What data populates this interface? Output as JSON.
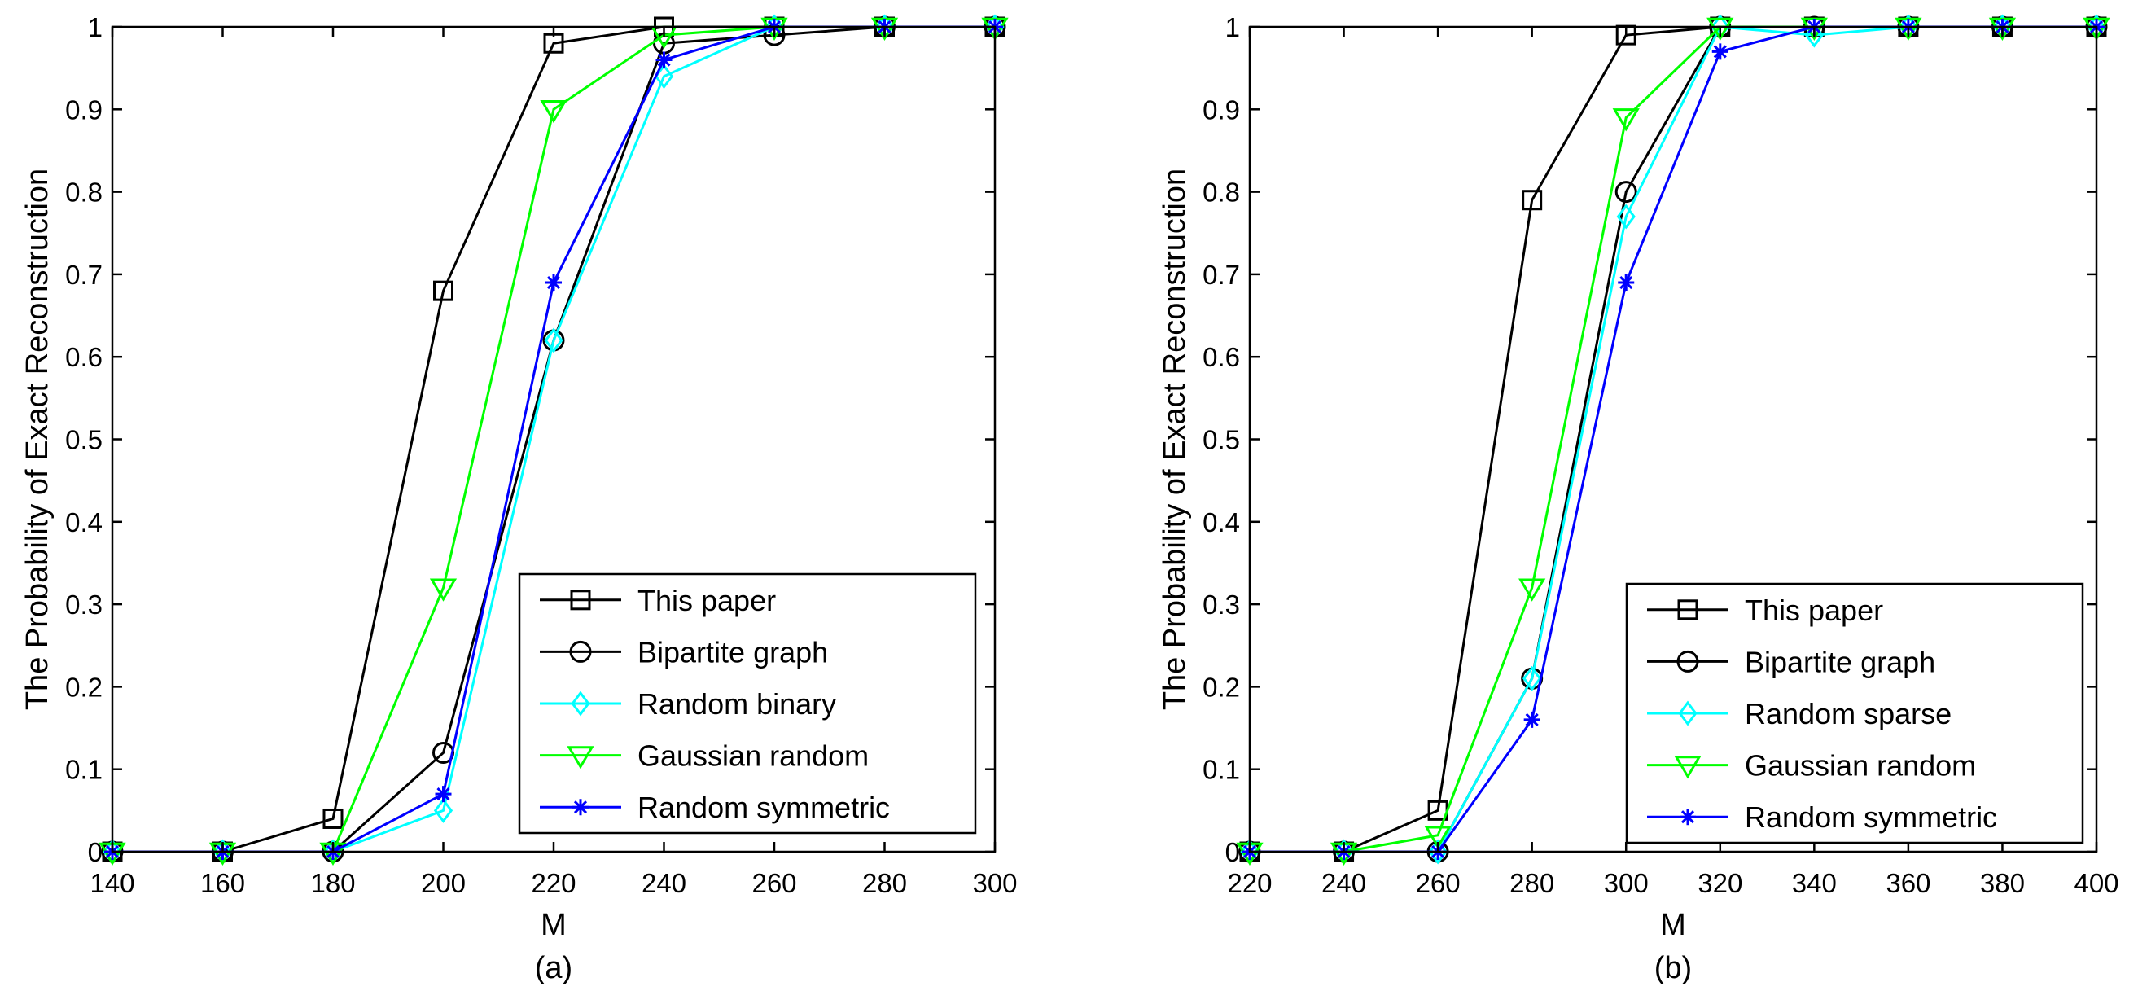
{
  "chart_data": [
    {
      "type": "line",
      "caption": "(a)",
      "xlabel": "M",
      "ylabel": "The Probability of Exact Reconstruction",
      "xlim": [
        140,
        300
      ],
      "ylim": [
        0,
        1
      ],
      "xticks": [
        "140",
        "160",
        "180",
        "200",
        "220",
        "240",
        "260",
        "280",
        "300"
      ],
      "yticks": [
        "0",
        "0.1",
        "0.2",
        "0.3",
        "0.4",
        "0.5",
        "0.6",
        "0.7",
        "0.8",
        "0.9",
        "1"
      ],
      "legend_position": "lower-right",
      "grid": false,
      "x": [
        140,
        160,
        180,
        200,
        220,
        240,
        260,
        280,
        300
      ],
      "series": [
        {
          "name": "This paper",
          "color": "#000000",
          "marker": "square",
          "values": [
            0,
            0,
            0.04,
            0.68,
            0.98,
            1.0,
            1.0,
            1.0,
            1.0
          ]
        },
        {
          "name": "Bipartite graph",
          "color": "#000000",
          "marker": "circle",
          "values": [
            0,
            0,
            0,
            0.12,
            0.62,
            0.98,
            0.99,
            1.0,
            1.0
          ]
        },
        {
          "name": "Random binary",
          "color": "#00ffff",
          "marker": "diamond",
          "values": [
            0,
            0,
            0,
            0.05,
            0.62,
            0.94,
            1.0,
            1.0,
            1.0
          ]
        },
        {
          "name": "Gaussian random",
          "color": "#00ff00",
          "marker": "triangle-down",
          "values": [
            0,
            0,
            0,
            0.32,
            0.9,
            0.99,
            1.0,
            1.0,
            1.0
          ]
        },
        {
          "name": "Random symmetric",
          "color": "#0000ff",
          "marker": "asterisk",
          "values": [
            0,
            0,
            0,
            0.07,
            0.69,
            0.96,
            1.0,
            1.0,
            1.0
          ]
        }
      ]
    },
    {
      "type": "line",
      "caption": "(b)",
      "xlabel": "M",
      "ylabel": "The Probability of Exact Reconstruction",
      "xlim": [
        220,
        400
      ],
      "ylim": [
        0,
        1
      ],
      "xticks": [
        "220",
        "240",
        "260",
        "280",
        "300",
        "320",
        "340",
        "360",
        "380",
        "400"
      ],
      "yticks": [
        "0",
        "0.1",
        "0.2",
        "0.3",
        "0.4",
        "0.5",
        "0.6",
        "0.7",
        "0.8",
        "0.9",
        "1"
      ],
      "legend_position": "lower-right",
      "grid": false,
      "x": [
        220,
        240,
        260,
        280,
        300,
        320,
        340,
        360,
        380,
        400
      ],
      "series": [
        {
          "name": "This paper",
          "color": "#000000",
          "marker": "square",
          "values": [
            0,
            0,
            0.05,
            0.79,
            0.99,
            1.0,
            1.0,
            1.0,
            1.0,
            1.0
          ]
        },
        {
          "name": "Bipartite graph",
          "color": "#000000",
          "marker": "circle",
          "values": [
            0,
            0,
            0,
            0.21,
            0.8,
            1.0,
            1.0,
            1.0,
            1.0,
            1.0
          ]
        },
        {
          "name": "Random sparse",
          "color": "#00ffff",
          "marker": "diamond",
          "values": [
            0,
            0,
            0,
            0.21,
            0.77,
            1.0,
            0.99,
            1.0,
            1.0,
            1.0
          ]
        },
        {
          "name": "Gaussian random",
          "color": "#00ff00",
          "marker": "triangle-down",
          "values": [
            0,
            0,
            0.02,
            0.32,
            0.89,
            1.0,
            1.0,
            1.0,
            1.0,
            1.0
          ]
        },
        {
          "name": "Random symmetric",
          "color": "#0000ff",
          "marker": "asterisk",
          "values": [
            0,
            0,
            0,
            0.16,
            0.69,
            0.97,
            1.0,
            1.0,
            1.0,
            1.0
          ]
        }
      ]
    }
  ]
}
